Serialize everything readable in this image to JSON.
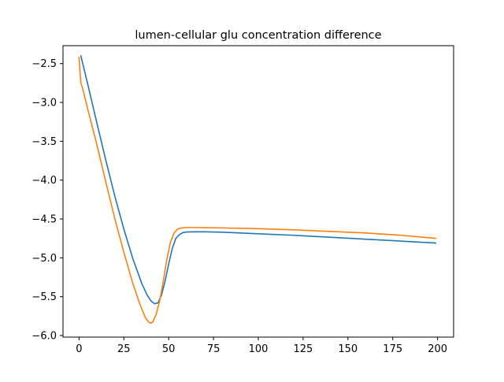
{
  "chart_data": {
    "type": "line",
    "title": "lumen-cellular glu concentration difference",
    "xlabel": "",
    "ylabel": "",
    "xlim": [
      -8.95,
      208.95
    ],
    "ylim": [
      -6.02,
      -2.27
    ],
    "xticks": [
      0,
      25,
      50,
      75,
      100,
      125,
      150,
      175,
      200
    ],
    "yticks": [
      -6.0,
      -5.5,
      -5.0,
      -4.5,
      -4.0,
      -3.5,
      -3.0,
      -2.5
    ],
    "xtick_labels": [
      "0",
      "25",
      "50",
      "75",
      "100",
      "125",
      "150",
      "175",
      "200"
    ],
    "ytick_labels": [
      "−6.0",
      "−5.5",
      "−5.0",
      "−4.5",
      "−4.0",
      "−3.5",
      "−3.0",
      "−2.5"
    ],
    "grid": false,
    "legend": "none",
    "series": [
      {
        "color": "#1f77b4",
        "x": [
          1,
          5,
          10,
          15,
          20,
          25,
          30,
          35,
          38,
          40,
          42,
          44,
          46,
          48,
          50,
          52,
          54,
          56,
          58,
          60,
          65,
          70,
          80,
          100,
          120,
          140,
          160,
          180,
          199
        ],
        "y": [
          -2.4,
          -2.78,
          -3.27,
          -3.75,
          -4.21,
          -4.63,
          -5.01,
          -5.33,
          -5.48,
          -5.55,
          -5.59,
          -5.58,
          -5.48,
          -5.3,
          -5.08,
          -4.88,
          -4.75,
          -4.7,
          -4.675,
          -4.668,
          -4.665,
          -4.665,
          -4.67,
          -4.69,
          -4.71,
          -4.735,
          -4.76,
          -4.785,
          -4.81
        ]
      },
      {
        "color": "#ff7f0e",
        "x": [
          0,
          1,
          2,
          5,
          10,
          15,
          20,
          25,
          30,
          34,
          37,
          39,
          40,
          41,
          43,
          45,
          47,
          49,
          51,
          53,
          55,
          57,
          60,
          65,
          70,
          80,
          100,
          120,
          140,
          160,
          180,
          199
        ],
        "y": [
          -2.42,
          -2.75,
          -2.82,
          -3.1,
          -3.55,
          -4.03,
          -4.5,
          -4.93,
          -5.33,
          -5.6,
          -5.77,
          -5.83,
          -5.84,
          -5.83,
          -5.73,
          -5.55,
          -5.3,
          -5.02,
          -4.8,
          -4.68,
          -4.63,
          -4.615,
          -4.61,
          -4.61,
          -4.612,
          -4.615,
          -4.625,
          -4.64,
          -4.66,
          -4.68,
          -4.71,
          -4.75
        ]
      }
    ]
  }
}
